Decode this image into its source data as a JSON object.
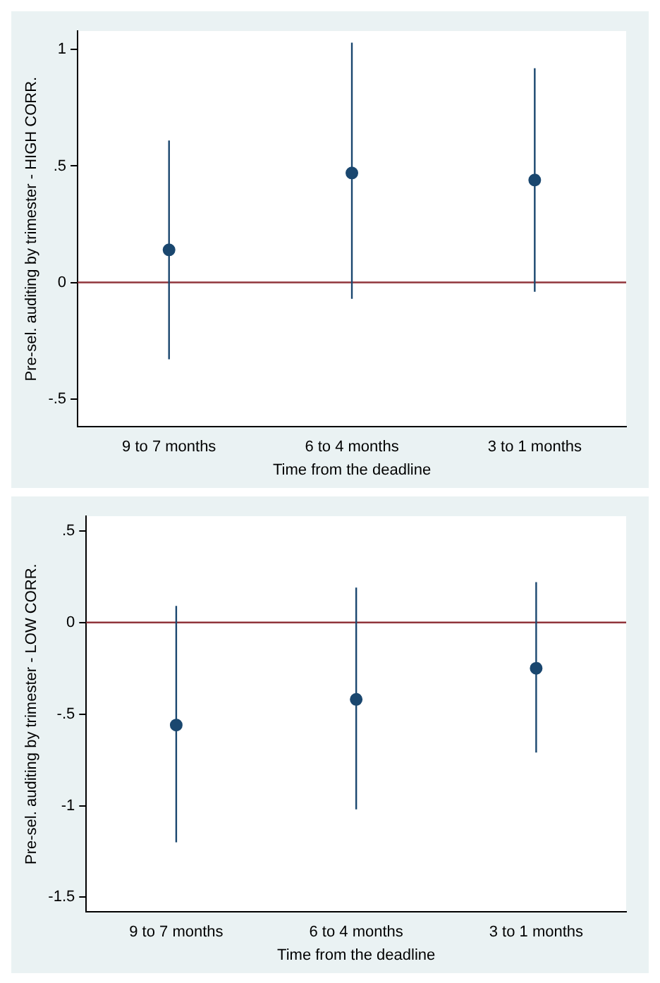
{
  "chart_data": [
    {
      "type": "scatter",
      "categories": [
        "9 to 7 months",
        "6 to 4 months",
        "3 to 1 months"
      ],
      "xlabel": "Time from the deadline",
      "ylabel": "Pre-sel. auditing by trimester - HIGH CORR.",
      "ylim": [
        -0.62,
        1.08
      ],
      "yticks": [
        {
          "value": -0.5,
          "label": "-.5"
        },
        0,
        {
          "value": 0.5,
          "label": ".5"
        },
        1
      ],
      "grid": false,
      "legend": false,
      "marker": "circle",
      "series": [
        {
          "color": "#1a476f",
          "values": [
            0.14,
            0.47,
            0.44
          ],
          "errors": [
            [
              -0.33,
              0.61
            ],
            [
              -0.07,
              1.03
            ],
            [
              -0.04,
              0.92
            ]
          ]
        }
      ],
      "ref_lines": [
        {
          "axis": "y",
          "value": 0,
          "color": "#90353b"
        }
      ]
    },
    {
      "type": "scatter",
      "categories": [
        "9 to 7 months",
        "6 to 4 months",
        "3 to 1 months"
      ],
      "xlabel": "Time from the deadline",
      "ylabel": "Pre-sel. auditing by trimester - LOW CORR.",
      "ylim": [
        -1.58,
        0.58
      ],
      "yticks": [
        {
          "value": -1.5,
          "label": "-1.5"
        },
        -1,
        {
          "value": -0.5,
          "label": "-.5"
        },
        0,
        {
          "value": 0.5,
          "label": ".5"
        }
      ],
      "grid": false,
      "legend": false,
      "marker": "circle",
      "series": [
        {
          "color": "#1a476f",
          "values": [
            -0.56,
            -0.42,
            -0.25
          ],
          "errors": [
            [
              -1.2,
              0.09
            ],
            [
              -1.02,
              0.19
            ],
            [
              -0.71,
              0.22
            ]
          ]
        }
      ],
      "ref_lines": [
        {
          "axis": "y",
          "value": 0,
          "color": "#90353b"
        }
      ]
    }
  ]
}
